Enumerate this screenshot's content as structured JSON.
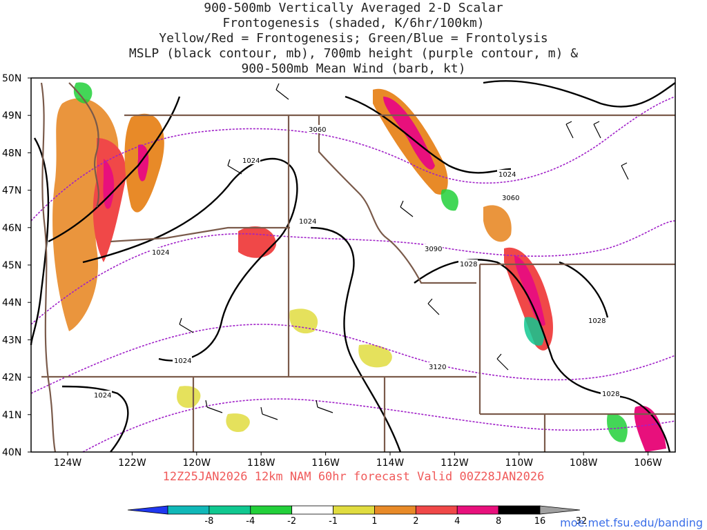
{
  "title_lines": [
    "900-500mb Vertically Averaged 2-D Scalar",
    "Frontogenesis (shaded, K/6hr/100km)",
    "Yellow/Red = Frontogenesis;  Green/Blue = Frontolysis",
    "MSLP (black contour, mb), 700mb height (purple contour, m) &",
    "900-500mb Mean Wind (barb, kt)"
  ],
  "lat_labels": [
    "50N",
    "49N",
    "48N",
    "47N",
    "46N",
    "45N",
    "44N",
    "43N",
    "42N",
    "41N",
    "40N"
  ],
  "lon_labels": [
    "124W",
    "122W",
    "120W",
    "118W",
    "116W",
    "114W",
    "112W",
    "110W",
    "108W",
    "106W"
  ],
  "contour_labels": {
    "mslp": [
      "1024",
      "1024",
      "1024",
      "1024",
      "1024",
      "1024",
      "1024",
      "1028",
      "1028",
      "1028"
    ],
    "height": [
      "3060",
      "3060",
      "3090",
      "3120"
    ]
  },
  "valid_text": "12Z25JAN2026 12km NAM 60hr forecast Valid 00Z28JAN2026",
  "colorbar": {
    "ticks": [
      "-8",
      "-4",
      "-2",
      "-1",
      "1",
      "2",
      "4",
      "8",
      "16",
      "32"
    ],
    "colors": [
      "#2038f0",
      "#10b8b8",
      "#10c890",
      "#22d03a",
      "#ffffff",
      "#e0dc40",
      "#e88a28",
      "#f04848",
      "#e8107c",
      "#000000",
      "#a0a0a0"
    ]
  },
  "credit": "moe.met.fsu.edu/banding",
  "colors": {
    "mslp_contour": "#000000",
    "height_contour": "#a020c8",
    "borders": "#7a5a4a",
    "barbs": "#000000"
  }
}
